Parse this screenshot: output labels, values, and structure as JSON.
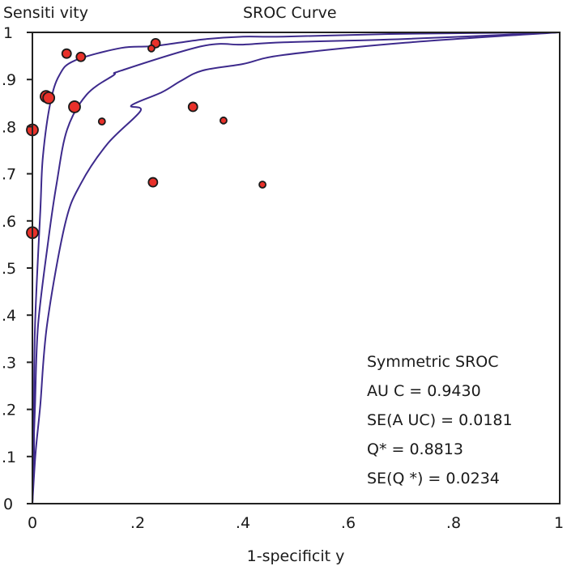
{
  "chart_data": {
    "type": "scatter",
    "title": "SROC Curve",
    "xlabel": "1-specificit y",
    "ylabel": "Sensiti vity",
    "xlim": [
      0,
      1
    ],
    "ylim": [
      0,
      1
    ],
    "grid": false,
    "x_ticks": [
      {
        "value": 0,
        "label": "0"
      },
      {
        "value": 0.2,
        "label": ".2"
      },
      {
        "value": 0.4,
        "label": ".4"
      },
      {
        "value": 0.6,
        "label": ".6"
      },
      {
        "value": 0.8,
        "label": ".8"
      },
      {
        "value": 1,
        "label": "1"
      }
    ],
    "y_ticks": [
      {
        "value": 0,
        "label": "0"
      },
      {
        "value": 0.1,
        "label": ".1"
      },
      {
        "value": 0.2,
        "label": ".2"
      },
      {
        "value": 0.3,
        "label": ".3"
      },
      {
        "value": 0.4,
        "label": ".4"
      },
      {
        "value": 0.5,
        "label": ".5"
      },
      {
        "value": 0.6,
        "label": ".6"
      },
      {
        "value": 0.7,
        "label": ".7"
      },
      {
        "value": 0.8,
        "label": ".8"
      },
      {
        "value": 0.9,
        "label": ".9"
      },
      {
        "value": 1,
        "label": "1"
      }
    ],
    "curves": [
      {
        "name": "upper-bound",
        "color": "#3d2a8c",
        "points": [
          [
            0,
            0
          ],
          [
            0.003,
            0.107
          ],
          [
            0.003,
            0.21
          ],
          [
            0.005,
            0.381
          ],
          [
            0.015,
            0.622
          ],
          [
            0.02,
            0.737
          ],
          [
            0.034,
            0.85
          ],
          [
            0.051,
            0.909
          ],
          [
            0.08,
            0.94
          ],
          [
            0.169,
            0.967
          ],
          [
            0.232,
            0.971
          ],
          [
            0.323,
            0.985
          ],
          [
            0.4,
            0.991
          ],
          [
            0.477,
            0.991
          ],
          [
            0.708,
            0.997
          ],
          [
            1,
            1
          ]
        ]
      },
      {
        "name": "sroc",
        "color": "#3d2a8c",
        "points": [
          [
            0,
            0
          ],
          [
            0.002,
            0.107
          ],
          [
            0.005,
            0.21
          ],
          [
            0.011,
            0.381
          ],
          [
            0.031,
            0.565
          ],
          [
            0.046,
            0.679
          ],
          [
            0.066,
            0.794
          ],
          [
            0.103,
            0.868
          ],
          [
            0.154,
            0.909
          ],
          [
            0.169,
            0.919
          ],
          [
            0.323,
            0.971
          ],
          [
            0.4,
            0.974
          ],
          [
            0.477,
            0.979
          ],
          [
            0.708,
            0.986
          ],
          [
            1,
            1
          ]
        ]
      },
      {
        "name": "lower-bound",
        "color": "#3d2a8c",
        "points": [
          [
            0,
            0
          ],
          [
            0.006,
            0.107
          ],
          [
            0.015,
            0.21
          ],
          [
            0.028,
            0.381
          ],
          [
            0.062,
            0.593
          ],
          [
            0.092,
            0.679
          ],
          [
            0.143,
            0.764
          ],
          [
            0.188,
            0.845
          ],
          [
            0.205,
            0.833
          ],
          [
            0.246,
            0.873
          ],
          [
            0.282,
            0.897
          ],
          [
            0.323,
            0.919
          ],
          [
            0.4,
            0.933
          ],
          [
            0.477,
            0.952
          ],
          [
            0.708,
            0.978
          ],
          [
            1,
            1
          ]
        ]
      }
    ],
    "series": [
      {
        "name": "studies",
        "color": "#e8312a",
        "points": [
          {
            "x": 0.065,
            "y": 0.955,
            "size": "medium"
          },
          {
            "x": 0.092,
            "y": 0.948,
            "size": "medium"
          },
          {
            "x": 0.234,
            "y": 0.977,
            "size": "medium"
          },
          {
            "x": 0.226,
            "y": 0.966,
            "size": "small"
          },
          {
            "x": 0.026,
            "y": 0.864,
            "size": "large"
          },
          {
            "x": 0.031,
            "y": 0.861,
            "size": "large"
          },
          {
            "x": 0.08,
            "y": 0.842,
            "size": "large"
          },
          {
            "x": 0.132,
            "y": 0.811,
            "size": "small"
          },
          {
            "x": 0.0,
            "y": 0.793,
            "size": "large"
          },
          {
            "x": 0.0,
            "y": 0.575,
            "size": "large"
          },
          {
            "x": 0.305,
            "y": 0.842,
            "size": "medium"
          },
          {
            "x": 0.363,
            "y": 0.813,
            "size": "small"
          },
          {
            "x": 0.229,
            "y": 0.682,
            "size": "medium"
          },
          {
            "x": 0.437,
            "y": 0.677,
            "size": "small"
          }
        ]
      }
    ],
    "annotation": {
      "lines": [
        "Symmetric SROC",
        "AU C = 0.9430",
        "SE(A UC)  = 0.0181",
        "Q* = 0.8813",
        "SE(Q *) = 0.0234"
      ],
      "placement": "bottom-right"
    },
    "summary": {
      "model": "Symmetric SROC",
      "AUC": 0.943,
      "SE_AUC": 0.0181,
      "Q_star": 0.8813,
      "SE_Q_star": 0.0234
    }
  }
}
